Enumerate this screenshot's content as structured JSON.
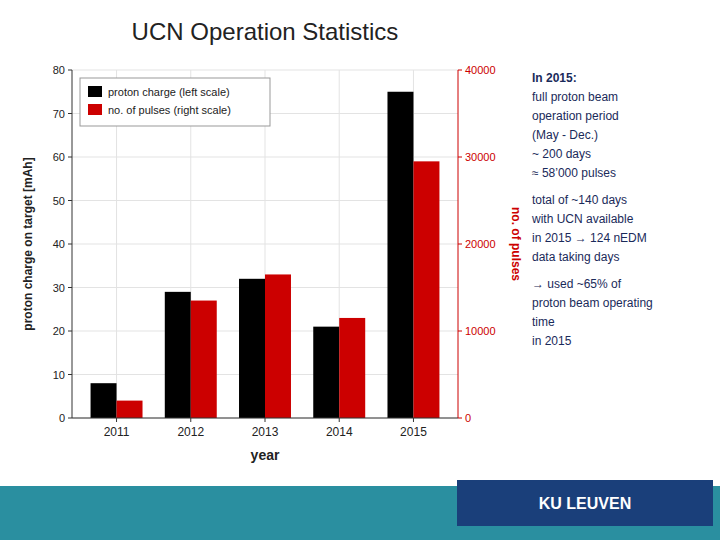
{
  "chart_data": {
    "type": "bar",
    "title": "UCN Operation Statistics",
    "xlabel": "year",
    "ylabel": "proton charge on target [mAh]",
    "y2label": "no. of pulses",
    "categories": [
      "2011",
      "2012",
      "2013",
      "2014",
      "2015"
    ],
    "series": [
      {
        "name": "proton charge (left scale)",
        "color": "#000000",
        "values": [
          8,
          29,
          32,
          21,
          75
        ]
      },
      {
        "name": "no. of pulses (right scale)",
        "color": "#cc0000",
        "axis": "y2",
        "values": [
          2000,
          13500,
          16500,
          11500,
          29500
        ]
      }
    ],
    "ylim": [
      0,
      80
    ],
    "yticks": [
      0,
      10,
      20,
      30,
      40,
      50,
      60,
      70,
      80
    ],
    "y2lim": [
      0,
      40000
    ],
    "y2ticks": [
      0,
      10000,
      20000,
      30000,
      40000
    ],
    "grid": true,
    "legend": "upper left",
    "annotations": [
      "In 2015:",
      "full proton beam",
      "operation period",
      "(May - Dec.)",
      "~ 200 days",
      "≈ 58’000 pulses",
      "total of ~140 days",
      "with UCN available",
      "in 2015 → 124 nEDM",
      "data taking days",
      "→  used ~65% of",
      "proton beam operating",
      "time",
      "in 2015",
      "KU LEUVEN"
    ]
  }
}
